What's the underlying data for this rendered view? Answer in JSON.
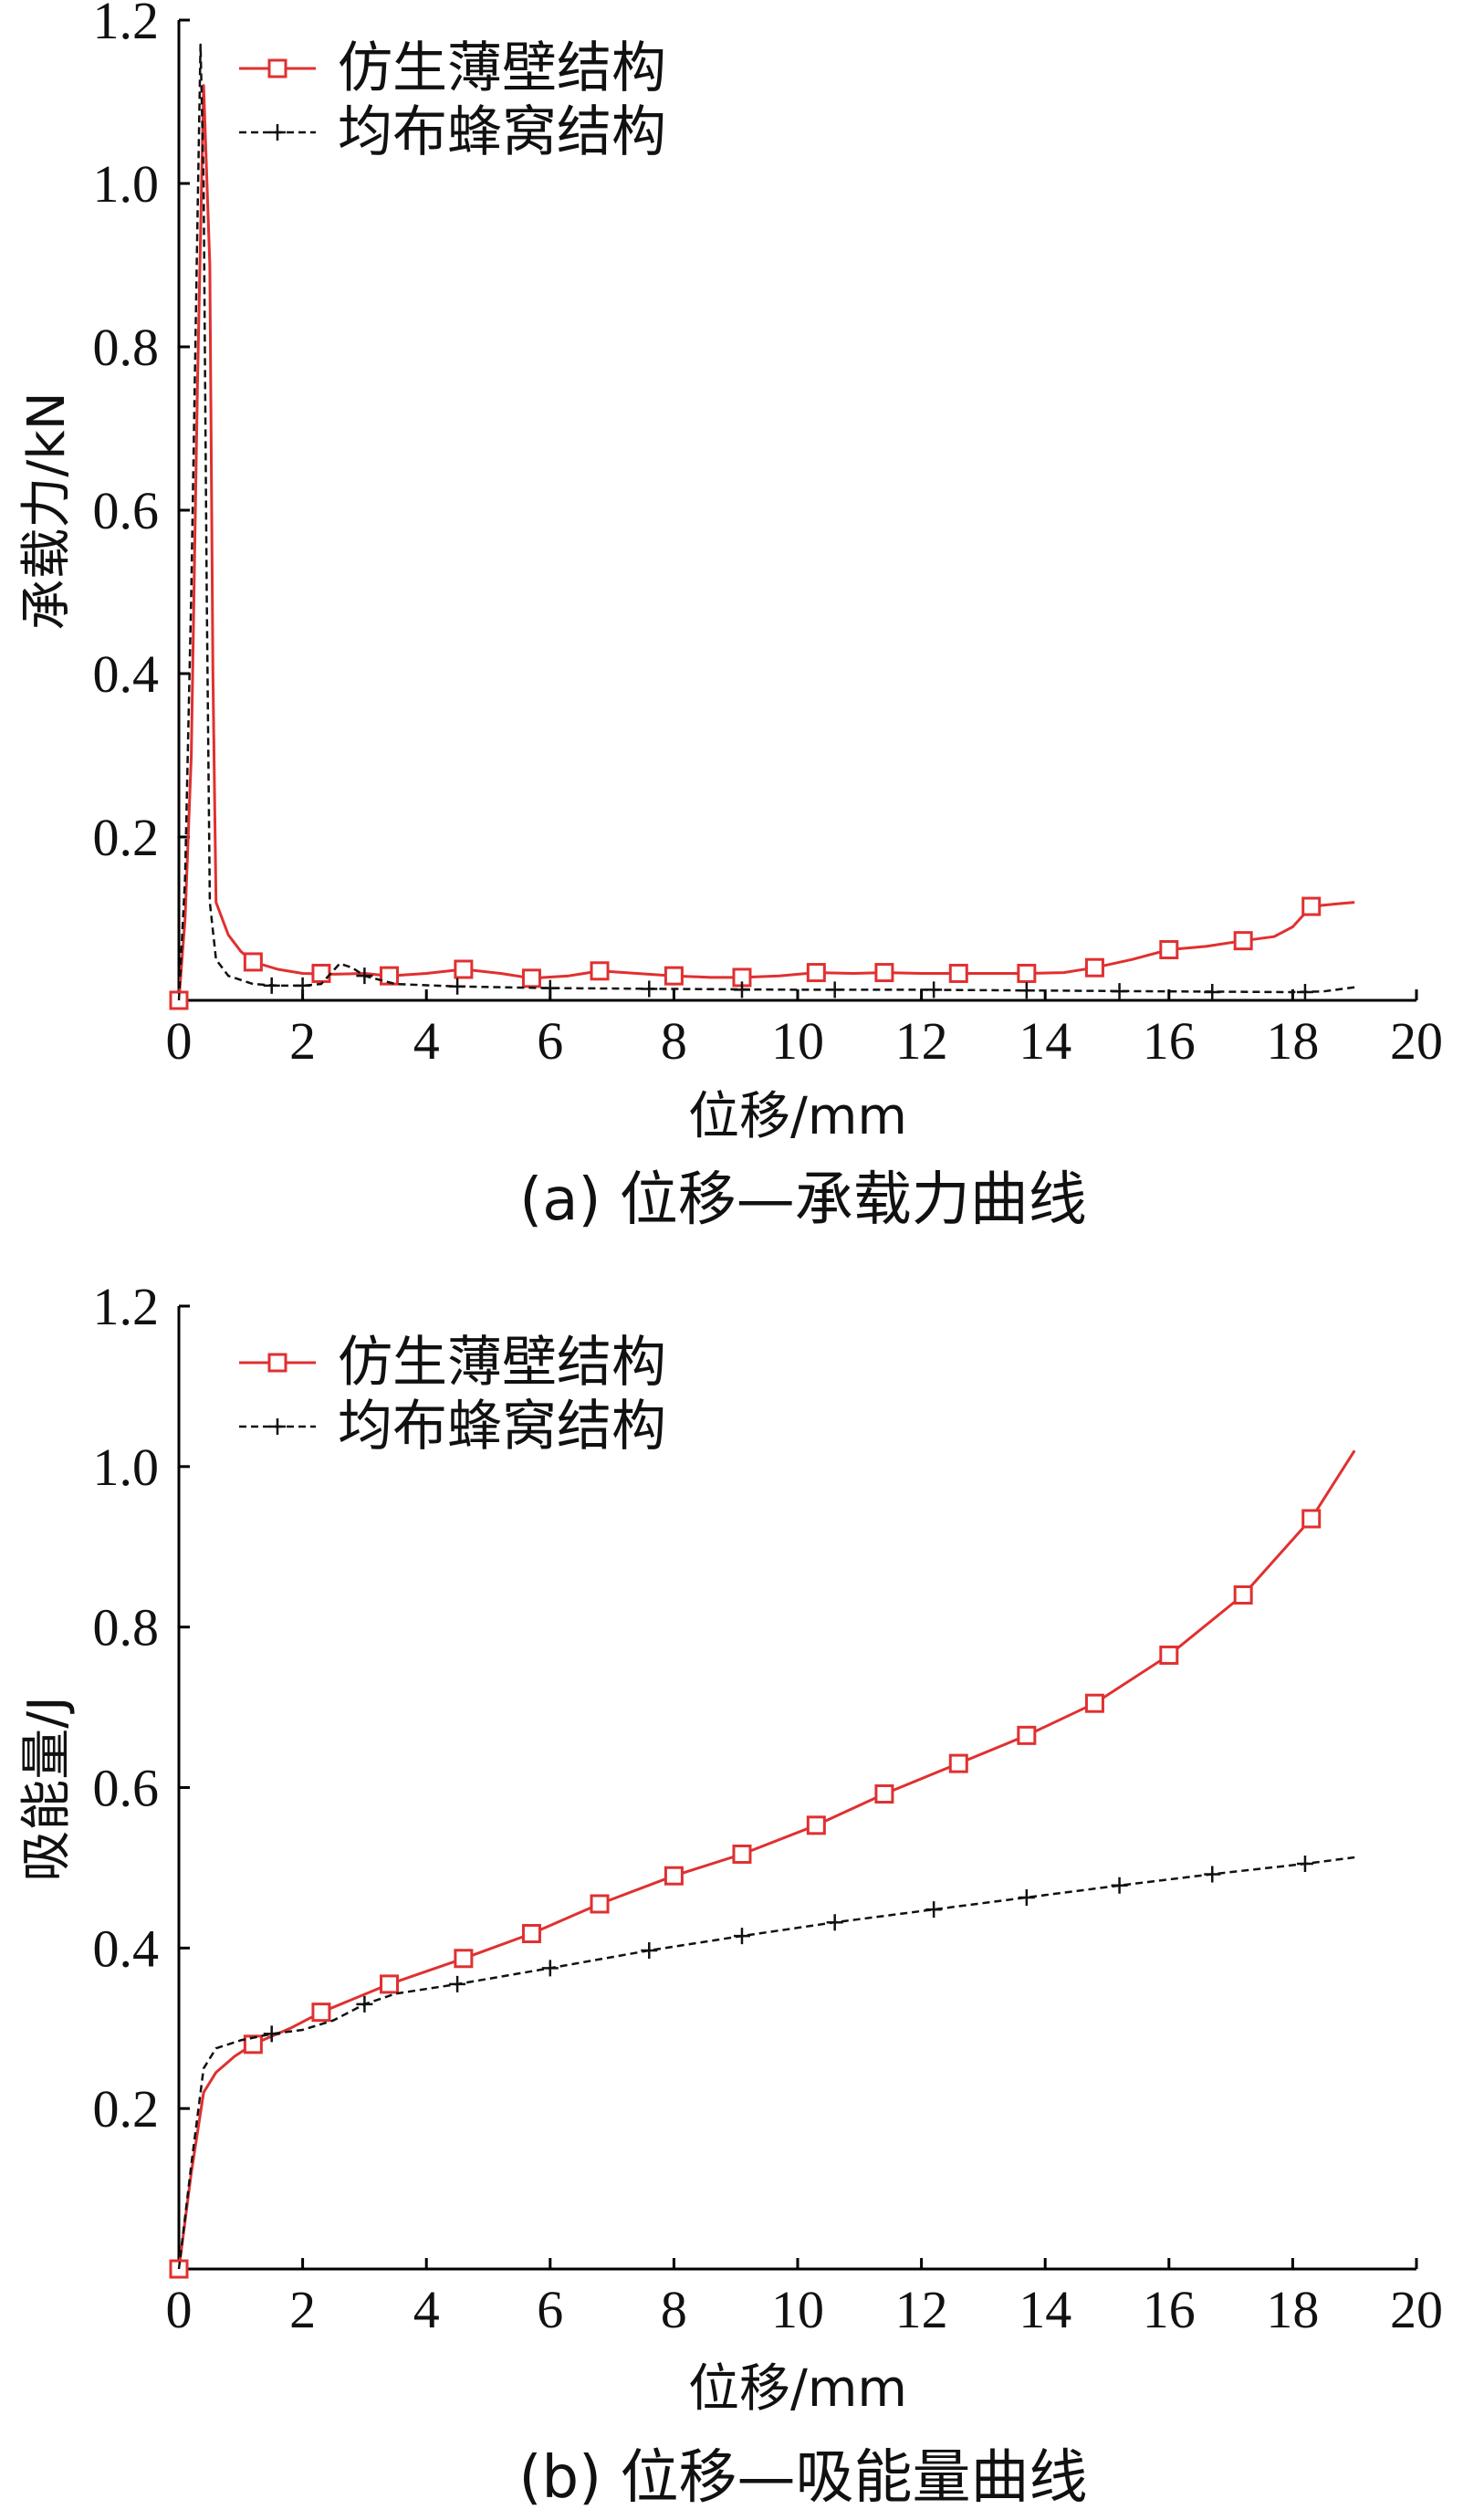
{
  "chart_data": [
    {
      "id": "a",
      "type": "line",
      "caption": "(a)  位移—承载力曲线",
      "xlabel": "位移/mm",
      "ylabel": "承载力/kN",
      "xlim": [
        0,
        20
      ],
      "ylim": [
        0,
        1.2
      ],
      "xticks": [
        "0",
        "2",
        "4",
        "6",
        "8",
        "10",
        "12",
        "14",
        "16",
        "18",
        "20"
      ],
      "yticks": [
        "0.2",
        "0.4",
        "0.6",
        "0.8",
        "1.0",
        "1.2"
      ],
      "legend_position": "top-left",
      "series": [
        {
          "name": "仿生薄壁结构",
          "color": "#e03030",
          "style": "solid",
          "marker": "square",
          "points": [
            [
              0,
              0
            ],
            [
              0.1,
              0.1
            ],
            [
              0.2,
              0.3
            ],
            [
              0.3,
              0.75
            ],
            [
              0.4,
              1.12
            ],
            [
              0.5,
              0.9
            ],
            [
              0.55,
              0.4
            ],
            [
              0.6,
              0.12
            ],
            [
              0.8,
              0.08
            ],
            [
              1.0,
              0.06
            ],
            [
              1.2,
              0.047
            ],
            [
              1.6,
              0.038
            ],
            [
              2.0,
              0.033
            ],
            [
              2.5,
              0.032
            ],
            [
              3.0,
              0.033
            ],
            [
              3.4,
              0.03
            ],
            [
              4.0,
              0.033
            ],
            [
              4.6,
              0.038
            ],
            [
              5.2,
              0.033
            ],
            [
              5.7,
              0.027
            ],
            [
              6.3,
              0.03
            ],
            [
              6.8,
              0.036
            ],
            [
              7.4,
              0.033
            ],
            [
              8.0,
              0.03
            ],
            [
              8.6,
              0.028
            ],
            [
              9.1,
              0.028
            ],
            [
              9.7,
              0.03
            ],
            [
              10.3,
              0.034
            ],
            [
              10.9,
              0.033
            ],
            [
              11.4,
              0.034
            ],
            [
              12.0,
              0.033
            ],
            [
              12.6,
              0.033
            ],
            [
              13.2,
              0.033
            ],
            [
              13.7,
              0.033
            ],
            [
              14.3,
              0.034
            ],
            [
              14.8,
              0.04
            ],
            [
              15.4,
              0.05
            ],
            [
              16.0,
              0.062
            ],
            [
              16.6,
              0.066
            ],
            [
              17.2,
              0.073
            ],
            [
              17.7,
              0.078
            ],
            [
              18.0,
              0.09
            ],
            [
              18.3,
              0.115
            ],
            [
              18.7,
              0.118
            ],
            [
              19.0,
              0.12
            ]
          ],
          "markers": [
            [
              0,
              0
            ],
            [
              1.2,
              0.047
            ],
            [
              2.3,
              0.033
            ],
            [
              3.4,
              0.03
            ],
            [
              4.6,
              0.038
            ],
            [
              5.7,
              0.027
            ],
            [
              6.8,
              0.036
            ],
            [
              8.0,
              0.03
            ],
            [
              9.1,
              0.028
            ],
            [
              10.3,
              0.034
            ],
            [
              11.4,
              0.034
            ],
            [
              12.6,
              0.033
            ],
            [
              13.7,
              0.033
            ],
            [
              14.8,
              0.04
            ],
            [
              16.0,
              0.062
            ],
            [
              17.2,
              0.073
            ],
            [
              18.3,
              0.115
            ]
          ]
        },
        {
          "name": "均布蜂窝结构",
          "color": "#111111",
          "style": "dashed",
          "marker": "plus",
          "points": [
            [
              0,
              0
            ],
            [
              0.1,
              0.15
            ],
            [
              0.2,
              0.5
            ],
            [
              0.3,
              0.95
            ],
            [
              0.35,
              1.17
            ],
            [
              0.4,
              1.0
            ],
            [
              0.45,
              0.5
            ],
            [
              0.5,
              0.12
            ],
            [
              0.6,
              0.05
            ],
            [
              0.8,
              0.03
            ],
            [
              1.2,
              0.02
            ],
            [
              1.6,
              0.018
            ],
            [
              2.0,
              0.018
            ],
            [
              2.3,
              0.02
            ],
            [
              2.6,
              0.045
            ],
            [
              2.8,
              0.04
            ],
            [
              3.0,
              0.03
            ],
            [
              3.5,
              0.02
            ],
            [
              4.5,
              0.017
            ],
            [
              6.0,
              0.015
            ],
            [
              8.0,
              0.014
            ],
            [
              10.0,
              0.013
            ],
            [
              12.0,
              0.013
            ],
            [
              14.0,
              0.012
            ],
            [
              16.0,
              0.011
            ],
            [
              18.0,
              0.01
            ],
            [
              18.5,
              0.011
            ],
            [
              19.0,
              0.016
            ]
          ],
          "markers": [
            [
              1.5,
              0.018
            ],
            [
              2.0,
              0.018
            ],
            [
              3.0,
              0.03
            ],
            [
              4.5,
              0.017
            ],
            [
              6.0,
              0.015
            ],
            [
              7.6,
              0.014
            ],
            [
              9.1,
              0.013
            ],
            [
              10.6,
              0.013
            ],
            [
              12.2,
              0.013
            ],
            [
              13.7,
              0.012
            ],
            [
              15.2,
              0.011
            ],
            [
              16.7,
              0.01
            ],
            [
              18.2,
              0.01
            ]
          ]
        }
      ]
    },
    {
      "id": "b",
      "type": "line",
      "caption": "(b)  位移—吸能量曲线",
      "xlabel": "位移/mm",
      "ylabel": "吸能量/J",
      "xlim": [
        0,
        20
      ],
      "ylim": [
        0,
        1.2
      ],
      "xticks": [
        "0",
        "2",
        "4",
        "6",
        "8",
        "10",
        "12",
        "14",
        "16",
        "18",
        "20"
      ],
      "yticks": [
        "0.2",
        "0.4",
        "0.6",
        "0.8",
        "1.0",
        "1.2"
      ],
      "legend_position": "top-left",
      "series": [
        {
          "name": "仿生薄壁结构",
          "color": "#e03030",
          "style": "solid",
          "marker": "square",
          "points": [
            [
              0,
              0
            ],
            [
              0.2,
              0.12
            ],
            [
              0.4,
              0.22
            ],
            [
              0.6,
              0.245
            ],
            [
              0.9,
              0.265
            ],
            [
              1.2,
              0.28
            ],
            [
              1.8,
              0.3
            ],
            [
              2.3,
              0.32
            ],
            [
              3.4,
              0.355
            ],
            [
              4.6,
              0.387
            ],
            [
              5.7,
              0.418
            ],
            [
              6.8,
              0.455
            ],
            [
              8.0,
              0.49
            ],
            [
              9.1,
              0.517
            ],
            [
              10.3,
              0.553
            ],
            [
              11.4,
              0.592
            ],
            [
              12.6,
              0.63
            ],
            [
              13.7,
              0.665
            ],
            [
              14.8,
              0.705
            ],
            [
              16.0,
              0.765
            ],
            [
              17.2,
              0.84
            ],
            [
              18.3,
              0.935
            ],
            [
              19.0,
              1.02
            ]
          ],
          "markers": [
            [
              0,
              0
            ],
            [
              1.2,
              0.28
            ],
            [
              2.3,
              0.32
            ],
            [
              3.4,
              0.355
            ],
            [
              4.6,
              0.387
            ],
            [
              5.7,
              0.418
            ],
            [
              6.8,
              0.455
            ],
            [
              8.0,
              0.49
            ],
            [
              9.1,
              0.517
            ],
            [
              10.3,
              0.553
            ],
            [
              11.4,
              0.592
            ],
            [
              12.6,
              0.63
            ],
            [
              13.7,
              0.665
            ],
            [
              14.8,
              0.705
            ],
            [
              16.0,
              0.765
            ],
            [
              17.2,
              0.84
            ],
            [
              18.3,
              0.935
            ]
          ]
        },
        {
          "name": "均布蜂窝结构",
          "color": "#111111",
          "style": "dashed",
          "marker": "plus",
          "points": [
            [
              0,
              0
            ],
            [
              0.2,
              0.13
            ],
            [
              0.4,
              0.25
            ],
            [
              0.6,
              0.275
            ],
            [
              1.0,
              0.285
            ],
            [
              1.5,
              0.293
            ],
            [
              2.0,
              0.298
            ],
            [
              2.5,
              0.31
            ],
            [
              3.0,
              0.33
            ],
            [
              3.5,
              0.343
            ],
            [
              4.5,
              0.355
            ],
            [
              6.0,
              0.375
            ],
            [
              7.6,
              0.397
            ],
            [
              9.1,
              0.415
            ],
            [
              10.6,
              0.432
            ],
            [
              12.2,
              0.448
            ],
            [
              13.7,
              0.463
            ],
            [
              15.2,
              0.478
            ],
            [
              16.7,
              0.492
            ],
            [
              18.2,
              0.505
            ],
            [
              19.0,
              0.513
            ]
          ],
          "markers": [
            [
              1.5,
              0.293
            ],
            [
              3.0,
              0.33
            ],
            [
              4.5,
              0.355
            ],
            [
              6.0,
              0.375
            ],
            [
              7.6,
              0.397
            ],
            [
              9.1,
              0.415
            ],
            [
              10.6,
              0.432
            ],
            [
              12.2,
              0.448
            ],
            [
              13.7,
              0.463
            ],
            [
              15.2,
              0.478
            ],
            [
              16.7,
              0.492
            ],
            [
              18.2,
              0.505
            ]
          ]
        }
      ]
    }
  ]
}
